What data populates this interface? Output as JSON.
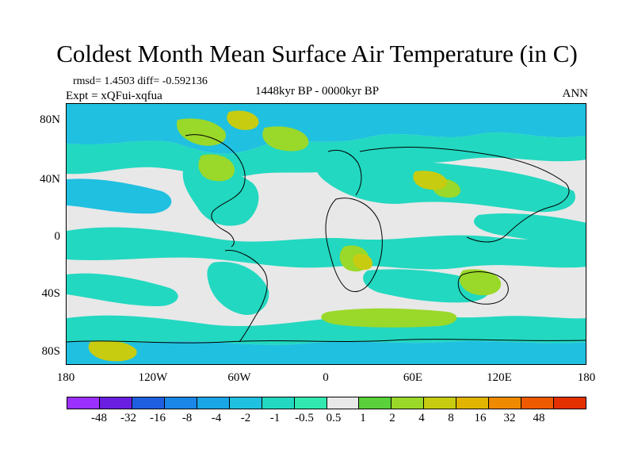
{
  "title": "Coldest Month Mean Surface Air Temperature (in C)",
  "stats": "rmsd= 1.4503 diff= -0.592136",
  "experiment": "Expt = xQFui-xqfua",
  "period": "1448kyr BP - 0000kyr BP",
  "season": "ANN",
  "lat_labels": [
    "80N",
    "40N",
    "0",
    "40S",
    "80S"
  ],
  "lon_labels": [
    "180",
    "120W",
    "60W",
    "0",
    "60E",
    "120E",
    "180"
  ],
  "colorbar": {
    "labels": [
      "-48",
      "-32",
      "-16",
      "-8",
      "-4",
      "-2",
      "-1",
      "-0.5",
      "0.5",
      "1",
      "2",
      "4",
      "8",
      "16",
      "32",
      "48"
    ],
    "colors": [
      "#9b30ff",
      "#6a1fe0",
      "#1e5fe0",
      "#1a86e6",
      "#1aa6e6",
      "#20c0e0",
      "#22d8c0",
      "#30e8b0",
      "#e8e8e8",
      "#5ad03a",
      "#9ad82a",
      "#c8cc10",
      "#e0b400",
      "#ee8a00",
      "#ee5a00",
      "#e23000"
    ]
  },
  "fill_colors": {
    "neutral": "#e8e8e8",
    "cool1": "#22d8c0",
    "cool2": "#20c0e0",
    "cool3": "#1aa6e6",
    "warm1": "#9ad82a",
    "warm2": "#c8cc10"
  }
}
